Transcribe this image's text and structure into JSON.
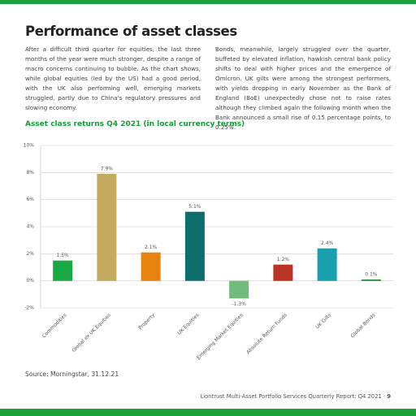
{
  "header": {
    "title": "Performance of asset classes"
  },
  "body": {
    "paragraphs": [
      "After a difficult third quarter for equities, the last three months of the year were much stronger, despite a range of macro concerns continuing to bubble. As the chart shows, while global equities (led by the US) had a good period, with the UK also performing well, emerging markets struggled, partly due to China's regulatory pressures and slowing economy.",
      "Bonds, meanwhile, largely struggled over the quarter, buffeted by elevated inflation, hawkish central bank policy shifts to deal with higher prices and the emergence of Omicron. UK gilts were among the strongest performers, with yields dropping in early November as the Bank of England (BoE) unexpectedly chose not to raise rates although they climbed again the following month when the Bank announced a small rise of 0.15 percentage points, to 0.25%."
    ]
  },
  "chart_data": {
    "type": "bar",
    "title": "Asset class returns Q4 2021 (in local currency terms)",
    "categories": [
      "Commodities",
      "Global ex UK Equities",
      "Property",
      "UK Equities",
      "Emerging Market Equities",
      "Absolute Return Funds",
      "UK Gilts",
      "Global Bonds"
    ],
    "values": [
      1.5,
      7.9,
      2.1,
      5.1,
      -1.3,
      1.2,
      2.4,
      0.1
    ],
    "value_labels": [
      "1.5%",
      "7.9%",
      "2.1%",
      "5.1%",
      "-1.3%",
      "1.2%",
      "2.4%",
      "0.1%"
    ],
    "colors": [
      "#1aaa44",
      "#c4aa5e",
      "#e8820f",
      "#0e6e6e",
      "#72bb7c",
      "#b83425",
      "#1a9fb0",
      "#1e8c3a"
    ],
    "ylim": [
      -2,
      10
    ],
    "yticks": [
      {
        "value": -2,
        "label": "-2%"
      },
      {
        "value": 0,
        "label": "0%"
      },
      {
        "value": 2,
        "label": "2%"
      },
      {
        "value": 4,
        "label": "4%"
      },
      {
        "value": 6,
        "label": "6%"
      },
      {
        "value": 8,
        "label": "8%"
      },
      {
        "value": 10,
        "label": "10%"
      }
    ],
    "grid": true
  },
  "source": "Source: Morningstar, 31.12.21",
  "footer": {
    "text": "Liontrust Multi-Asset Portfolio Services Quarterly Report: Q4 2021 ·",
    "page": "9"
  }
}
